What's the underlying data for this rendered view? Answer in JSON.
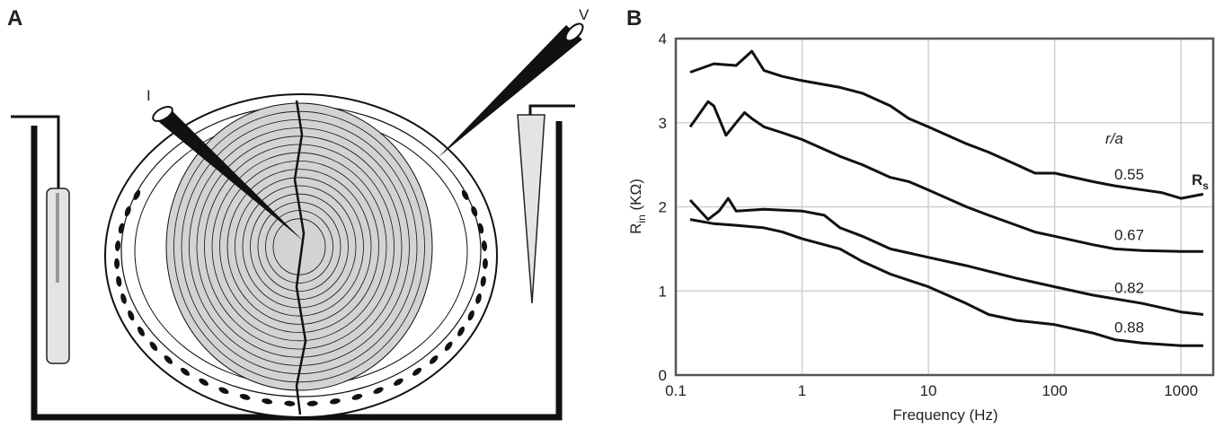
{
  "panel_a": {
    "label": "A",
    "electrode_current": "I",
    "electrode_voltage": "V"
  },
  "chart_data": {
    "type": "line",
    "panel_label": "B",
    "x_label": "Frequency (Hz)",
    "y_label": [
      "R",
      "in",
      " (KΩ)"
    ],
    "xscale": "log",
    "xlim": [
      0.1,
      1800
    ],
    "xticks": [
      0.1,
      1,
      10,
      100,
      1000
    ],
    "ylim": [
      0,
      4
    ],
    "yticks": [
      0,
      1,
      2,
      3,
      4
    ],
    "grid": true,
    "legend_title": "r/a",
    "annotation": [
      "R",
      "s"
    ],
    "series": [
      {
        "name": "0.55",
        "color": "#111111",
        "x": [
          0.13,
          0.2,
          0.3,
          0.4,
          0.5,
          0.7,
          1,
          2,
          3,
          5,
          7,
          10,
          20,
          30,
          50,
          70,
          100,
          200,
          300,
          500,
          700,
          1000,
          1500
        ],
        "values": [
          3.6,
          3.7,
          3.68,
          3.85,
          3.62,
          3.55,
          3.5,
          3.42,
          3.35,
          3.2,
          3.05,
          2.95,
          2.75,
          2.65,
          2.5,
          2.4,
          2.4,
          2.3,
          2.25,
          2.2,
          2.17,
          2.1,
          2.15
        ]
      },
      {
        "name": "0.67",
        "color": "#111111",
        "x": [
          0.13,
          0.18,
          0.2,
          0.25,
          0.3,
          0.35,
          0.4,
          0.5,
          0.7,
          1,
          2,
          3,
          5,
          7,
          10,
          20,
          30,
          50,
          70,
          100,
          200,
          300,
          500,
          1000,
          1500
        ],
        "values": [
          2.95,
          3.25,
          3.2,
          2.85,
          3.0,
          3.12,
          3.05,
          2.95,
          2.88,
          2.8,
          2.6,
          2.5,
          2.35,
          2.3,
          2.2,
          2.0,
          1.9,
          1.78,
          1.7,
          1.65,
          1.55,
          1.5,
          1.48,
          1.47,
          1.47
        ]
      },
      {
        "name": "0.82",
        "color": "#111111",
        "x": [
          0.13,
          0.18,
          0.22,
          0.26,
          0.3,
          0.5,
          1,
          1.5,
          2,
          3,
          5,
          10,
          20,
          50,
          100,
          200,
          500,
          1000,
          1500
        ],
        "values": [
          2.08,
          1.85,
          1.95,
          2.1,
          1.95,
          1.97,
          1.95,
          1.9,
          1.75,
          1.65,
          1.5,
          1.4,
          1.3,
          1.15,
          1.05,
          0.95,
          0.85,
          0.75,
          0.72
        ]
      },
      {
        "name": "0.88",
        "color": "#111111",
        "x": [
          0.13,
          0.2,
          0.3,
          0.5,
          0.7,
          1,
          2,
          3,
          5,
          10,
          20,
          30,
          50,
          100,
          200,
          300,
          500,
          1000,
          1500
        ],
        "values": [
          1.85,
          1.8,
          1.78,
          1.75,
          1.7,
          1.62,
          1.5,
          1.35,
          1.2,
          1.05,
          0.85,
          0.72,
          0.65,
          0.6,
          0.5,
          0.42,
          0.38,
          0.35,
          0.35
        ]
      }
    ]
  }
}
